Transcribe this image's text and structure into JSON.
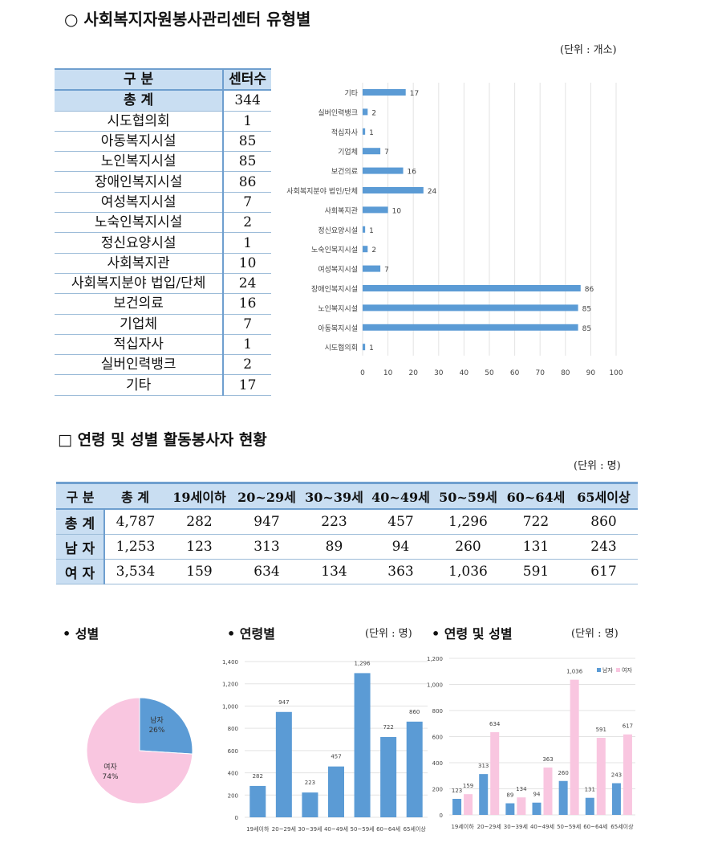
{
  "section1": {
    "title": "○ 사회복지자원봉사관리센터 유형별",
    "unit": "(단위 : 개소)",
    "table": {
      "headers": [
        "구 분",
        "센터수"
      ],
      "total": {
        "label": "총 계",
        "value": "344"
      },
      "rows": [
        {
          "label": "시도협의회",
          "value": "1"
        },
        {
          "label": "아동복지시설",
          "value": "85"
        },
        {
          "label": "노인복지시설",
          "value": "85"
        },
        {
          "label": "장애인복지시설",
          "value": "86"
        },
        {
          "label": "여성복지시설",
          "value": "7"
        },
        {
          "label": "노숙인복지시설",
          "value": "2"
        },
        {
          "label": "정신요양시설",
          "value": "1"
        },
        {
          "label": "사회복지관",
          "value": "10"
        },
        {
          "label": "사회복지분야 법입/단체",
          "value": "24"
        },
        {
          "label": "보건의료",
          "value": "16"
        },
        {
          "label": "기업체",
          "value": "7"
        },
        {
          "label": "적십자사",
          "value": "1"
        },
        {
          "label": "실버인력뱅크",
          "value": "2"
        },
        {
          "label": "기타",
          "value": "17"
        }
      ]
    }
  },
  "section2": {
    "title": "□ 연령 및 성별 활동봉사자 현황",
    "unit": "(단위 : 명)",
    "headers": [
      "구 분",
      "총 계",
      "19세이하",
      "20~29세",
      "30~39세",
      "40~49세",
      "50~59세",
      "60~64세",
      "65세이상"
    ],
    "rows": [
      [
        "총 계",
        "4,787",
        "282",
        "947",
        "223",
        "457",
        "1,296",
        "722",
        "860"
      ],
      [
        "남 자",
        "1,253",
        "123",
        "313",
        "89",
        "94",
        "260",
        "131",
        "243"
      ],
      [
        "여 자",
        "3,534",
        "159",
        "634",
        "134",
        "363",
        "1,036",
        "591",
        "617"
      ]
    ]
  },
  "sub": {
    "gender": "• 성별",
    "age": "• 연령별",
    "age_unit": "(단위 : 명)",
    "age_gender": "• 연령 및 성별",
    "age_gender_unit": "(단위 : 명)"
  },
  "colors": {
    "blue": "#5b9bd5",
    "pink": "#f9c6e0",
    "header": "#c9def2"
  },
  "chart_data": [
    {
      "type": "bar",
      "orientation": "horizontal",
      "categories": [
        "기타",
        "실버인력뱅크",
        "적십자사",
        "기업체",
        "보건의료",
        "사회복지분야 법인/단체",
        "사회복지관",
        "정신요양시설",
        "노숙인복지시설",
        "여성복지시설",
        "장애인복지시설",
        "노인복지시설",
        "아동복지시설",
        "시도협의회"
      ],
      "values": [
        17,
        2,
        1,
        7,
        16,
        24,
        10,
        1,
        2,
        7,
        86,
        85,
        85,
        1
      ],
      "xlim": [
        0,
        100
      ],
      "xticks": [
        0,
        10,
        20,
        30,
        40,
        50,
        60,
        70,
        80,
        90,
        100
      ],
      "grid": true
    },
    {
      "type": "pie",
      "slices": [
        {
          "label": "남자",
          "pct": "26%",
          "value": 26
        },
        {
          "label": "여자",
          "pct": "74%",
          "value": 74
        }
      ]
    },
    {
      "type": "bar",
      "categories": [
        "19세이하",
        "20~29세",
        "30~39세",
        "40~49세",
        "50~59세",
        "60~64세",
        "65세이상"
      ],
      "values": [
        282,
        947,
        223,
        457,
        1296,
        722,
        860
      ],
      "labels": [
        "282",
        "947",
        "223",
        "457",
        "1,296",
        "722",
        "860"
      ],
      "ylim": [
        0,
        1400
      ],
      "yticks": [
        "0",
        "200",
        "400",
        "600",
        "800",
        "1,000",
        "1,200",
        "1,400"
      ],
      "grid": true
    },
    {
      "type": "bar",
      "categories": [
        "19세이하",
        "20~29세",
        "30~39세",
        "40~49세",
        "50~59세",
        "60~64세",
        "65세이상"
      ],
      "series": [
        {
          "name": "남자",
          "values": [
            123,
            313,
            89,
            94,
            260,
            131,
            243
          ],
          "labels": [
            "123",
            "313",
            "89",
            "94",
            "260",
            "131",
            "243"
          ]
        },
        {
          "name": "여자",
          "values": [
            159,
            634,
            134,
            363,
            1036,
            591,
            617
          ],
          "labels": [
            "159",
            "634",
            "134",
            "363",
            "1,036",
            "591",
            "617"
          ]
        }
      ],
      "ylim": [
        0,
        1200
      ],
      "yticks": [
        "0",
        "200",
        "400",
        "600",
        "800",
        "1,000",
        "1,200"
      ],
      "grid": true,
      "legend": "top-right"
    }
  ]
}
